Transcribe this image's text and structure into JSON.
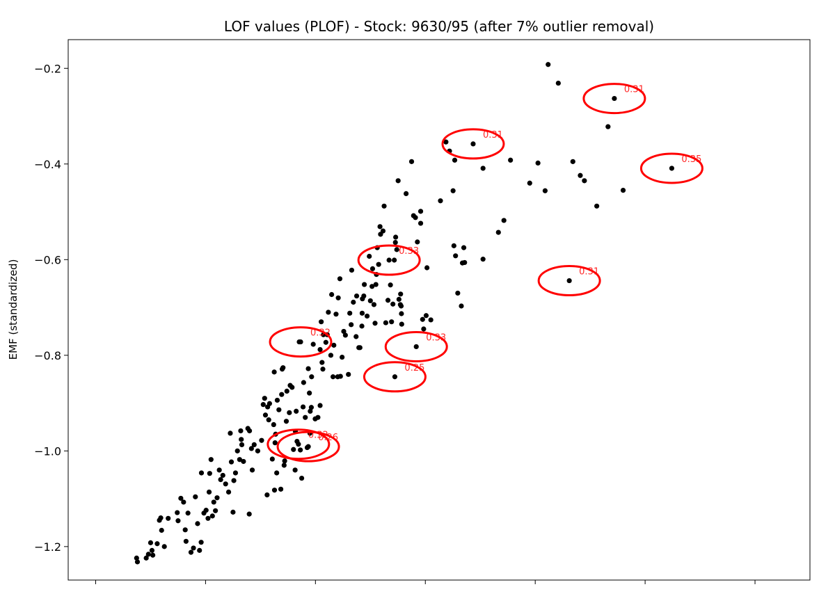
{
  "chart_data": {
    "type": "scatter",
    "title": "LOF values (PLOF) - Stock: 9630/95 (after 7% outlier removal)",
    "xlabel": "",
    "ylabel": "EMF (standardized)",
    "xlim": [
      -1.3,
      1.4
    ],
    "ylim": [
      -1.27,
      -0.14
    ],
    "x_ticks": [
      -1.2,
      -0.8,
      -0.4,
      0.0,
      0.4,
      0.8,
      1.2
    ],
    "y_ticks": [
      -1.2,
      -1.0,
      -0.8,
      -0.6,
      -0.4,
      -0.2
    ],
    "y_tick_labels": [
      "−1.2",
      "−1.0",
      "−0.8",
      "−0.6",
      "−0.4",
      "−0.2"
    ],
    "grid": false,
    "point_color": "#000000",
    "outlier_color": "#ff0000",
    "points": [
      [
        -1.051,
        -1.224
      ],
      [
        -1.048,
        -1.232
      ],
      [
        -1.016,
        -1.224
      ],
      [
        -1.008,
        -1.216
      ],
      [
        -1.0,
        -1.192
      ],
      [
        -0.995,
        -1.208
      ],
      [
        -0.992,
        -1.218
      ],
      [
        -0.976,
        -1.194
      ],
      [
        -0.96,
        -1.166
      ],
      [
        -0.968,
        -1.145
      ],
      [
        -0.963,
        -1.14
      ],
      [
        -0.95,
        -1.2
      ],
      [
        -0.936,
        -1.141
      ],
      [
        -0.903,
        -1.129
      ],
      [
        -0.9,
        -1.146
      ],
      [
        -0.89,
        -1.099
      ],
      [
        -0.88,
        -1.107
      ],
      [
        -0.874,
        -1.165
      ],
      [
        -0.871,
        -1.189
      ],
      [
        -0.864,
        -1.13
      ],
      [
        -0.853,
        -1.212
      ],
      [
        -0.844,
        -1.203
      ],
      [
        -0.837,
        -1.096
      ],
      [
        -0.829,
        -1.152
      ],
      [
        -0.822,
        -1.208
      ],
      [
        -0.816,
        -1.191
      ],
      [
        -0.815,
        -1.046
      ],
      [
        -0.806,
        -1.13
      ],
      [
        -0.798,
        -1.124
      ],
      [
        -0.791,
        -1.141
      ],
      [
        -0.787,
        -1.086
      ],
      [
        -0.785,
        -1.047
      ],
      [
        -0.78,
        -1.018
      ],
      [
        -0.775,
        -1.136
      ],
      [
        -0.77,
        -1.107
      ],
      [
        -0.764,
        -1.125
      ],
      [
        -0.758,
        -1.098
      ],
      [
        -0.75,
        -1.04
      ],
      [
        -0.745,
        -1.06
      ],
      [
        -0.737,
        -1.051
      ],
      [
        -0.727,
        -1.069
      ],
      [
        -0.716,
        -1.086
      ],
      [
        -0.71,
        -0.963
      ],
      [
        -0.706,
        -1.023
      ],
      [
        -0.7,
        -1.128
      ],
      [
        -0.697,
        -1.062
      ],
      [
        -0.691,
        -1.046
      ],
      [
        -0.684,
        -1.0
      ],
      [
        -0.676,
        -1.018
      ],
      [
        -0.672,
        -0.958
      ],
      [
        -0.67,
        -0.976
      ],
      [
        -0.668,
        -0.987
      ],
      [
        -0.662,
        -1.022
      ],
      [
        -0.646,
        -0.953
      ],
      [
        -0.641,
        -1.132
      ],
      [
        -0.64,
        -0.958
      ],
      [
        -0.633,
        -0.995
      ],
      [
        -0.63,
        -1.04
      ],
      [
        -0.623,
        -0.987
      ],
      [
        -0.61,
        -1.0
      ],
      [
        -0.596,
        -0.978
      ],
      [
        -0.59,
        -0.903
      ],
      [
        -0.585,
        -0.89
      ],
      [
        -0.582,
        -0.925
      ],
      [
        -0.576,
        -1.092
      ],
      [
        -0.574,
        -0.908
      ],
      [
        -0.57,
        -0.935
      ],
      [
        -0.567,
        -0.901
      ],
      [
        -0.557,
        -1.017
      ],
      [
        -0.552,
        -0.945
      ],
      [
        -0.55,
        -0.835
      ],
      [
        -0.549,
        -1.082
      ],
      [
        -0.547,
        -0.983
      ],
      [
        -0.545,
        -0.965
      ],
      [
        -0.541,
        -1.046
      ],
      [
        -0.539,
        -0.894
      ],
      [
        -0.533,
        -0.914
      ],
      [
        -0.526,
        -1.08
      ],
      [
        -0.523,
        -0.882
      ],
      [
        -0.521,
        -0.829
      ],
      [
        -0.518,
        -0.826
      ],
      [
        -0.514,
        -1.03
      ],
      [
        -0.512,
        -1.021
      ],
      [
        -0.506,
        -0.938
      ],
      [
        -0.504,
        -0.875
      ],
      [
        -0.495,
        -0.92
      ],
      [
        -0.492,
        -0.863
      ],
      [
        -0.485,
        -0.867
      ],
      [
        -0.48,
        -0.997
      ],
      [
        -0.474,
        -1.04
      ],
      [
        -0.473,
        -0.959
      ],
      [
        -0.47,
        -0.917
      ],
      [
        -0.467,
        -0.98
      ],
      [
        -0.459,
        -0.772
      ],
      [
        -0.455,
        -0.998
      ],
      [
        -0.45,
        -1.057
      ],
      [
        -0.445,
        -0.908
      ],
      [
        -0.443,
        -0.857
      ],
      [
        -0.437,
        -0.93
      ],
      [
        -0.43,
        -0.993
      ],
      [
        -0.426,
        -0.828
      ],
      [
        -0.422,
        -0.879
      ],
      [
        -0.42,
        -0.963
      ],
      [
        -0.419,
        -0.917
      ],
      [
        -0.415,
        -0.909
      ],
      [
        -0.414,
        -0.845
      ],
      [
        -0.408,
        -0.777
      ],
      [
        -0.401,
        -0.933
      ],
      [
        -0.391,
        -0.93
      ],
      [
        -0.383,
        -0.905
      ],
      [
        -0.383,
        -0.788
      ],
      [
        -0.379,
        -0.73
      ],
      [
        -0.376,
        -0.815
      ],
      [
        -0.373,
        -0.829
      ],
      [
        -0.371,
        -0.757
      ],
      [
        -0.362,
        -0.773
      ],
      [
        -0.357,
        -0.757
      ],
      [
        -0.353,
        -0.71
      ],
      [
        -0.344,
        -0.8
      ],
      [
        -0.341,
        -0.673
      ],
      [
        -0.336,
        -0.845
      ],
      [
        -0.333,
        -0.779
      ],
      [
        -0.325,
        -0.714
      ],
      [
        -0.319,
        -0.845
      ],
      [
        -0.317,
        -0.68
      ],
      [
        -0.311,
        -0.64
      ],
      [
        -0.309,
        -0.844
      ],
      [
        -0.303,
        -0.804
      ],
      [
        -0.297,
        -0.75
      ],
      [
        -0.291,
        -0.758
      ],
      [
        -0.28,
        -0.84
      ],
      [
        -0.275,
        -0.712
      ],
      [
        -0.27,
        -0.736
      ],
      [
        -0.268,
        -0.622
      ],
      [
        -0.262,
        -0.689
      ],
      [
        -0.252,
        -0.761
      ],
      [
        -0.25,
        -0.676
      ],
      [
        -0.242,
        -0.784
      ],
      [
        -0.238,
        -0.784
      ],
      [
        -0.231,
        -0.739
      ],
      [
        -0.23,
        -0.712
      ],
      [
        -0.229,
        -0.682
      ],
      [
        -0.224,
        -0.676
      ],
      [
        -0.222,
        -0.652
      ],
      [
        -0.212,
        -0.718
      ],
      [
        -0.204,
        -0.593
      ],
      [
        -0.2,
        -0.686
      ],
      [
        -0.194,
        -0.656
      ],
      [
        -0.192,
        -0.619
      ],
      [
        -0.187,
        -0.694
      ],
      [
        -0.183,
        -0.733
      ],
      [
        -0.18,
        -0.652
      ],
      [
        -0.178,
        -0.631
      ],
      [
        -0.175,
        -0.575
      ],
      [
        -0.17,
        -0.61
      ],
      [
        -0.165,
        -0.531
      ],
      [
        -0.163,
        -0.547
      ],
      [
        -0.154,
        -0.54
      ],
      [
        -0.15,
        -0.488
      ],
      [
        -0.144,
        -0.732
      ],
      [
        -0.136,
        -0.685
      ],
      [
        -0.127,
        -0.653
      ],
      [
        -0.123,
        -0.73
      ],
      [
        -0.118,
        -0.693
      ],
      [
        -0.113,
        -0.601
      ],
      [
        -0.109,
        -0.564
      ],
      [
        -0.108,
        -0.553
      ],
      [
        -0.104,
        -0.579
      ],
      [
        -0.099,
        -0.435
      ],
      [
        -0.096,
        -0.683
      ],
      [
        -0.091,
        -0.694
      ],
      [
        -0.09,
        -0.672
      ],
      [
        -0.088,
        -0.697
      ],
      [
        -0.087,
        -0.713
      ],
      [
        -0.086,
        -0.735
      ],
      [
        -0.07,
        -0.462
      ],
      [
        -0.05,
        -0.395
      ],
      [
        -0.043,
        -0.508
      ],
      [
        -0.036,
        -0.512
      ],
      [
        -0.029,
        -0.563
      ],
      [
        -0.017,
        -0.499
      ],
      [
        -0.017,
        -0.524
      ],
      [
        -0.01,
        -0.725
      ],
      [
        -0.006,
        -0.745
      ],
      [
        0.003,
        -0.717
      ],
      [
        0.006,
        -0.617
      ],
      [
        0.02,
        -0.726
      ],
      [
        0.055,
        -0.477
      ],
      [
        0.075,
        -0.354
      ],
      [
        0.088,
        -0.373
      ],
      [
        0.101,
        -0.456
      ],
      [
        0.104,
        -0.571
      ],
      [
        0.107,
        -0.392
      ],
      [
        0.11,
        -0.592
      ],
      [
        0.118,
        -0.67
      ],
      [
        0.131,
        -0.697
      ],
      [
        0.135,
        -0.607
      ],
      [
        0.14,
        -0.575
      ],
      [
        0.143,
        -0.606
      ],
      [
        0.21,
        -0.409
      ],
      [
        0.21,
        -0.599
      ],
      [
        0.266,
        -0.543
      ],
      [
        0.286,
        -0.518
      ],
      [
        0.31,
        -0.392
      ],
      [
        0.38,
        -0.44
      ],
      [
        0.41,
        -0.398
      ],
      [
        0.436,
        -0.456
      ],
      [
        0.447,
        -0.192
      ],
      [
        0.484,
        -0.231
      ],
      [
        0.537,
        -0.395
      ],
      [
        0.564,
        -0.424
      ],
      [
        0.579,
        -0.435
      ],
      [
        0.624,
        -0.488
      ],
      [
        0.665,
        -0.322
      ],
      [
        0.72,
        -0.455
      ]
    ],
    "lof_points": [
      {
        "x": -0.454,
        "y": -0.772,
        "label": "0.32"
      },
      {
        "x": -0.462,
        "y": -0.986,
        "label": "0.32"
      },
      {
        "x": -0.426,
        "y": -0.991,
        "label": "0.26"
      },
      {
        "x": -0.132,
        "y": -0.601,
        "label": "0.33"
      },
      {
        "x": -0.033,
        "y": -0.782,
        "label": "0.33"
      },
      {
        "x": -0.111,
        "y": -0.845,
        "label": "0.25"
      },
      {
        "x": 0.174,
        "y": -0.358,
        "label": "0.31"
      },
      {
        "x": 0.524,
        "y": -0.644,
        "label": "0.31"
      },
      {
        "x": 0.688,
        "y": -0.263,
        "label": "0.31"
      },
      {
        "x": 0.897,
        "y": -0.409,
        "label": "0.35"
      }
    ]
  }
}
